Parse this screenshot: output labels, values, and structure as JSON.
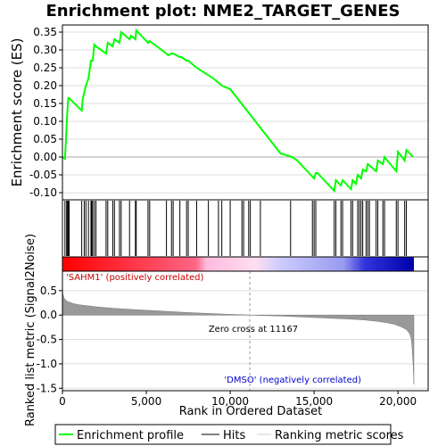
{
  "chart_data": {
    "type": "line",
    "title": "Enrichment plot: NME2_TARGET_GENES",
    "es_panel": {
      "ylabel": "Enrichment score (ES)",
      "ylim": [
        -0.12,
        0.37
      ],
      "yticks": [
        -0.1,
        -0.05,
        0.0,
        0.05,
        0.1,
        0.15,
        0.2,
        0.25,
        0.3,
        0.35
      ],
      "ytick_labels": [
        "-0.10",
        "-0.05",
        "0.00",
        "0.05",
        "0.10",
        "0.15",
        "0.20",
        "0.25",
        "0.30",
        "0.35"
      ],
      "series": [
        {
          "name": "Enrichment profile",
          "color": "#00ff00",
          "x": [
            0,
            150,
            200,
            250,
            300,
            350,
            400,
            1150,
            1200,
            1300,
            1400,
            1550,
            1700,
            1800,
            1900,
            2000,
            2600,
            2700,
            3000,
            3100,
            3400,
            3500,
            4000,
            4100,
            4350,
            4400,
            5100,
            5200,
            6200,
            6300,
            6500,
            6600,
            7000,
            7100,
            7400,
            7500,
            8000,
            9000,
            9500,
            10000,
            11000,
            12000,
            13000,
            13700,
            14000,
            15000,
            15100,
            15200,
            16200,
            16300,
            16600,
            16700,
            17200,
            17300,
            17500,
            17600,
            17800,
            17900,
            18100,
            18200,
            18700,
            18800,
            19100,
            19200,
            19900,
            20000,
            20400,
            20500,
            20900
          ],
          "y": [
            0.0,
            -0.005,
            0.04,
            0.09,
            0.13,
            0.165,
            0.165,
            0.13,
            0.16,
            0.18,
            0.2,
            0.22,
            0.27,
            0.27,
            0.315,
            0.31,
            0.29,
            0.32,
            0.31,
            0.33,
            0.32,
            0.35,
            0.33,
            0.34,
            0.33,
            0.355,
            0.32,
            0.325,
            0.29,
            0.285,
            0.29,
            0.29,
            0.28,
            0.28,
            0.27,
            0.27,
            0.25,
            0.22,
            0.2,
            0.19,
            0.13,
            0.07,
            0.01,
            0.0,
            -0.01,
            -0.06,
            -0.045,
            -0.045,
            -0.095,
            -0.065,
            -0.08,
            -0.065,
            -0.09,
            -0.065,
            -0.075,
            -0.05,
            -0.06,
            -0.035,
            -0.04,
            -0.02,
            -0.04,
            -0.01,
            -0.02,
            0.0,
            -0.04,
            0.015,
            -0.01,
            0.02,
            0.0
          ]
        }
      ]
    },
    "hits": {
      "name": "Hits",
      "positions": [
        150,
        250,
        300,
        350,
        400,
        1150,
        1300,
        1400,
        1550,
        1700,
        1750,
        1800,
        1900,
        2000,
        2600,
        2700,
        3000,
        3100,
        3400,
        3500,
        4000,
        4350,
        4400,
        5100,
        5200,
        6200,
        6500,
        6600,
        7000,
        7400,
        7500,
        8000,
        8700,
        9300,
        9500,
        10000,
        10700,
        10800,
        11100,
        11200,
        11800,
        13600,
        14900,
        15000,
        15100,
        16200,
        16300,
        16600,
        16700,
        17200,
        17300,
        17600,
        17700,
        17800,
        17900,
        18100,
        18200,
        18300,
        18700,
        18800,
        19100,
        19200,
        19900,
        20000,
        20400,
        20500
      ]
    },
    "ranked_metric": {
      "ylabel": "Ranked list metric (Signal2Noise)",
      "ylim": [
        -1.55,
        0.9
      ],
      "yticks": [
        -1.5,
        -1.0,
        -0.5,
        0.0,
        0.5
      ],
      "ytick_labels": [
        "-1.5",
        "-1.0",
        "-0.5",
        "0.0",
        "0.5"
      ],
      "name": "Ranking metric scores",
      "x": [
        0,
        20,
        60,
        150,
        300,
        600,
        1000,
        2000,
        3000,
        4000,
        5000,
        6000,
        7000,
        8000,
        9000,
        10000,
        11000,
        11167,
        12000,
        13000,
        14000,
        15000,
        16000,
        17000,
        18000,
        18800,
        19400,
        19800,
        20200,
        20500,
        20700,
        20800,
        20850,
        20900,
        20950
      ],
      "y": [
        0.62,
        0.45,
        0.38,
        0.32,
        0.28,
        0.24,
        0.21,
        0.17,
        0.14,
        0.12,
        0.1,
        0.08,
        0.06,
        0.045,
        0.03,
        0.015,
        0.005,
        0.0,
        -0.01,
        -0.02,
        -0.035,
        -0.05,
        -0.065,
        -0.08,
        -0.1,
        -0.13,
        -0.16,
        -0.19,
        -0.24,
        -0.3,
        -0.38,
        -0.5,
        -0.7,
        -1.0,
        -1.42
      ]
    },
    "xaxis": {
      "label": "Rank in Ordered Dataset",
      "xlim": [
        0,
        21800
      ],
      "ticks": [
        0,
        5000,
        10000,
        15000,
        20000
      ],
      "tick_labels": [
        "0",
        "5,000",
        "10,000",
        "15,000",
        "20,000"
      ],
      "n_genes": 20950
    },
    "annotations": {
      "positive_label": "'SAHM1' (positively correlated)",
      "negative_label": "'DMSO' (negatively correlated)",
      "zero_cross_label": "Zero cross at 11167",
      "zero_cross": 11167,
      "positive_color": "#cc0000",
      "negative_color": "#0000cc"
    },
    "legend": {
      "placement": "bottom",
      "items": [
        "Enrichment profile",
        "Hits",
        "Ranking metric scores"
      ]
    },
    "colors": {
      "profile": "#00ff00",
      "hits": "#000000",
      "metric_fill": "#999999",
      "grid": "#cccccc",
      "zero_cross_line": "#999999",
      "heat_stops": [
        "#ff0000",
        "#ff6688",
        "#ffbbdd",
        "#ccccff",
        "#9999ee",
        "#0000ff"
      ]
    }
  }
}
